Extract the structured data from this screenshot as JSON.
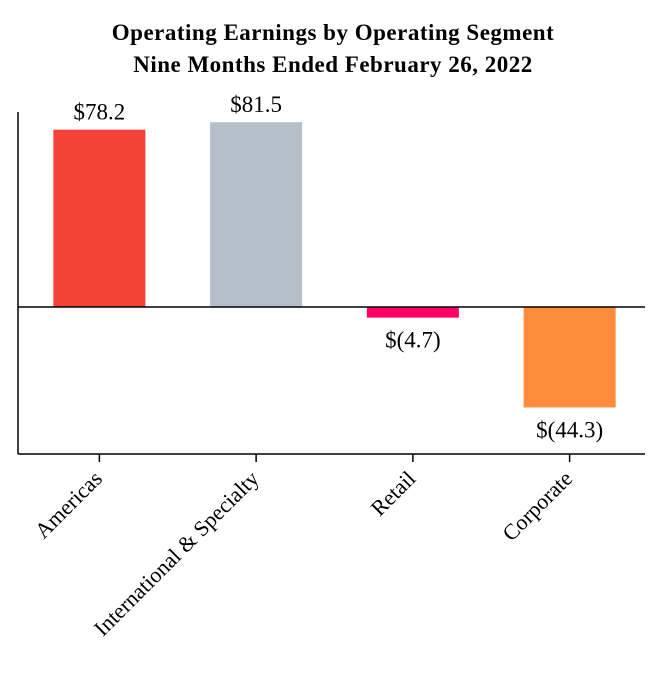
{
  "chart_data": {
    "type": "bar",
    "title": [
      "Operating Earnings by Operating Segment",
      "Nine Months Ended February 26, 2022"
    ],
    "categories": [
      "Americas",
      "International & Specialty",
      "Retail",
      "Corporate"
    ],
    "values": [
      78.2,
      81.5,
      -4.7,
      -44.3
    ],
    "data_labels": [
      "$78.2",
      "$81.5",
      "$(4.7)",
      "$(44.3)"
    ],
    "colors": [
      "#f44336",
      "#b5bfc8",
      "#ff0066",
      "#ff8c3a"
    ],
    "xlabel": "",
    "ylabel": "",
    "ylim": [
      -65,
      86
    ],
    "grid": false,
    "legend": "none"
  }
}
